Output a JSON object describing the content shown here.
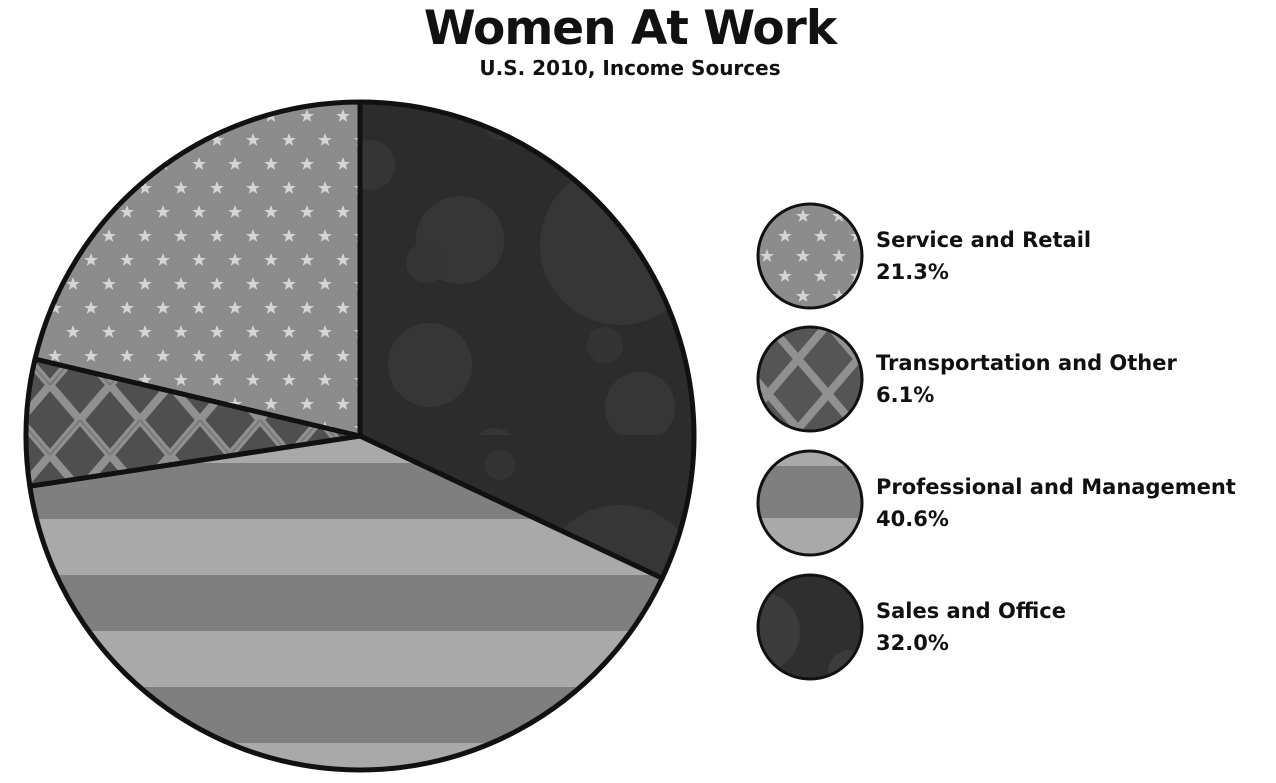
{
  "chart_data": {
    "type": "pie",
    "title": "Women At Work",
    "subtitle": "U.S. 2010, Income Sources",
    "slices": [
      {
        "label": "Sales and Office",
        "value": 32.0,
        "display": "32.0%",
        "fill": "#2c2c2c",
        "pattern": "circles"
      },
      {
        "label": "Professional and Management",
        "value": 40.6,
        "display": "40.6%",
        "fill": "#a6a6a6",
        "pattern": "stripes"
      },
      {
        "label": "Transportation and Other",
        "value": 6.1,
        "display": "6.1%",
        "fill": "#4e4e4e",
        "pattern": "lattice"
      },
      {
        "label": "Service and Retail",
        "value": 21.3,
        "display": "21.3%",
        "fill": "#8c8c8c",
        "pattern": "stars"
      }
    ],
    "start_angle": "12 o'clock",
    "direction": "clockwise",
    "legend": {
      "placement": "right",
      "order": [
        "Service and Retail",
        "Transportation and Other",
        "Professional and Management",
        "Sales and Office"
      ]
    },
    "colors": {
      "outline": "#111111",
      "background": "#ffffff"
    }
  }
}
